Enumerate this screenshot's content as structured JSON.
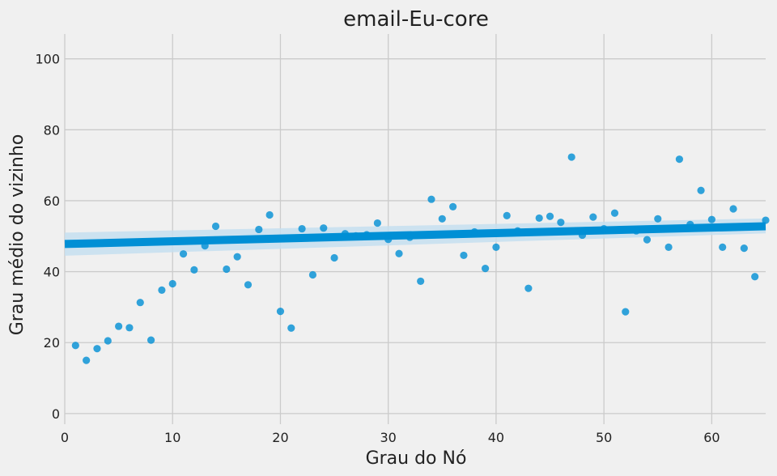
{
  "chart_data": {
    "type": "scatter",
    "title": "email-Eu-core",
    "xlabel": "Grau do Nó",
    "ylabel": "Grau médio do vizinho",
    "xlim": [
      0,
      65
    ],
    "ylim": [
      -3,
      107
    ],
    "xticks": [
      0,
      10,
      20,
      30,
      40,
      50,
      60
    ],
    "yticks": [
      0,
      20,
      40,
      60,
      80,
      100
    ],
    "grid": true,
    "colors": {
      "points": "#008fd5",
      "line": "#008fd5",
      "band": "#c6dff0",
      "background": "#f0f0f0",
      "grid": "#cbcbcb"
    },
    "regression": {
      "x": [
        0,
        65
      ],
      "y": [
        47.8,
        52.8
      ],
      "ci_lower": [
        44.5,
        50.8
      ],
      "ci_upper": [
        51.0,
        55.0
      ]
    },
    "points": [
      [
        1,
        19.2
      ],
      [
        2,
        15.0
      ],
      [
        3,
        18.3
      ],
      [
        4,
        20.5
      ],
      [
        5,
        24.6
      ],
      [
        6,
        24.2
      ],
      [
        7,
        31.3
      ],
      [
        8,
        20.7
      ],
      [
        9,
        34.8
      ],
      [
        10,
        36.6
      ],
      [
        11,
        45.0
      ],
      [
        12,
        40.5
      ],
      [
        13,
        47.3
      ],
      [
        14,
        52.8
      ],
      [
        15,
        40.7
      ],
      [
        16,
        44.2
      ],
      [
        17,
        36.3
      ],
      [
        18,
        51.9
      ],
      [
        19,
        56.0
      ],
      [
        20,
        28.8
      ],
      [
        21,
        24.1
      ],
      [
        22,
        52.1
      ],
      [
        23,
        39.1
      ],
      [
        24,
        52.3
      ],
      [
        25,
        43.9
      ],
      [
        26,
        50.7
      ],
      [
        27,
        50.1
      ],
      [
        28,
        50.4
      ],
      [
        29,
        53.7
      ],
      [
        30,
        49.1
      ],
      [
        31,
        45.1
      ],
      [
        32,
        49.7
      ],
      [
        33,
        37.3
      ],
      [
        34,
        60.4
      ],
      [
        35,
        54.9
      ],
      [
        36,
        58.3
      ],
      [
        37,
        44.6
      ],
      [
        38,
        51.2
      ],
      [
        39,
        40.9
      ],
      [
        40,
        46.9
      ],
      [
        41,
        55.8
      ],
      [
        42,
        51.5
      ],
      [
        43,
        35.3
      ],
      [
        44,
        55.1
      ],
      [
        45,
        55.6
      ],
      [
        46,
        53.9
      ],
      [
        47,
        72.3
      ],
      [
        48,
        50.3
      ],
      [
        49,
        55.4
      ],
      [
        50,
        52.1
      ],
      [
        51,
        56.5
      ],
      [
        52,
        28.7
      ],
      [
        53,
        51.5
      ],
      [
        54,
        49.0
      ],
      [
        55,
        54.9
      ],
      [
        56,
        46.9
      ],
      [
        57,
        71.7
      ],
      [
        58,
        53.3
      ],
      [
        59,
        62.9
      ],
      [
        60,
        54.7
      ],
      [
        61,
        46.9
      ],
      [
        62,
        57.7
      ],
      [
        63,
        46.6
      ],
      [
        64,
        38.6
      ],
      [
        65,
        54.5
      ]
    ]
  }
}
